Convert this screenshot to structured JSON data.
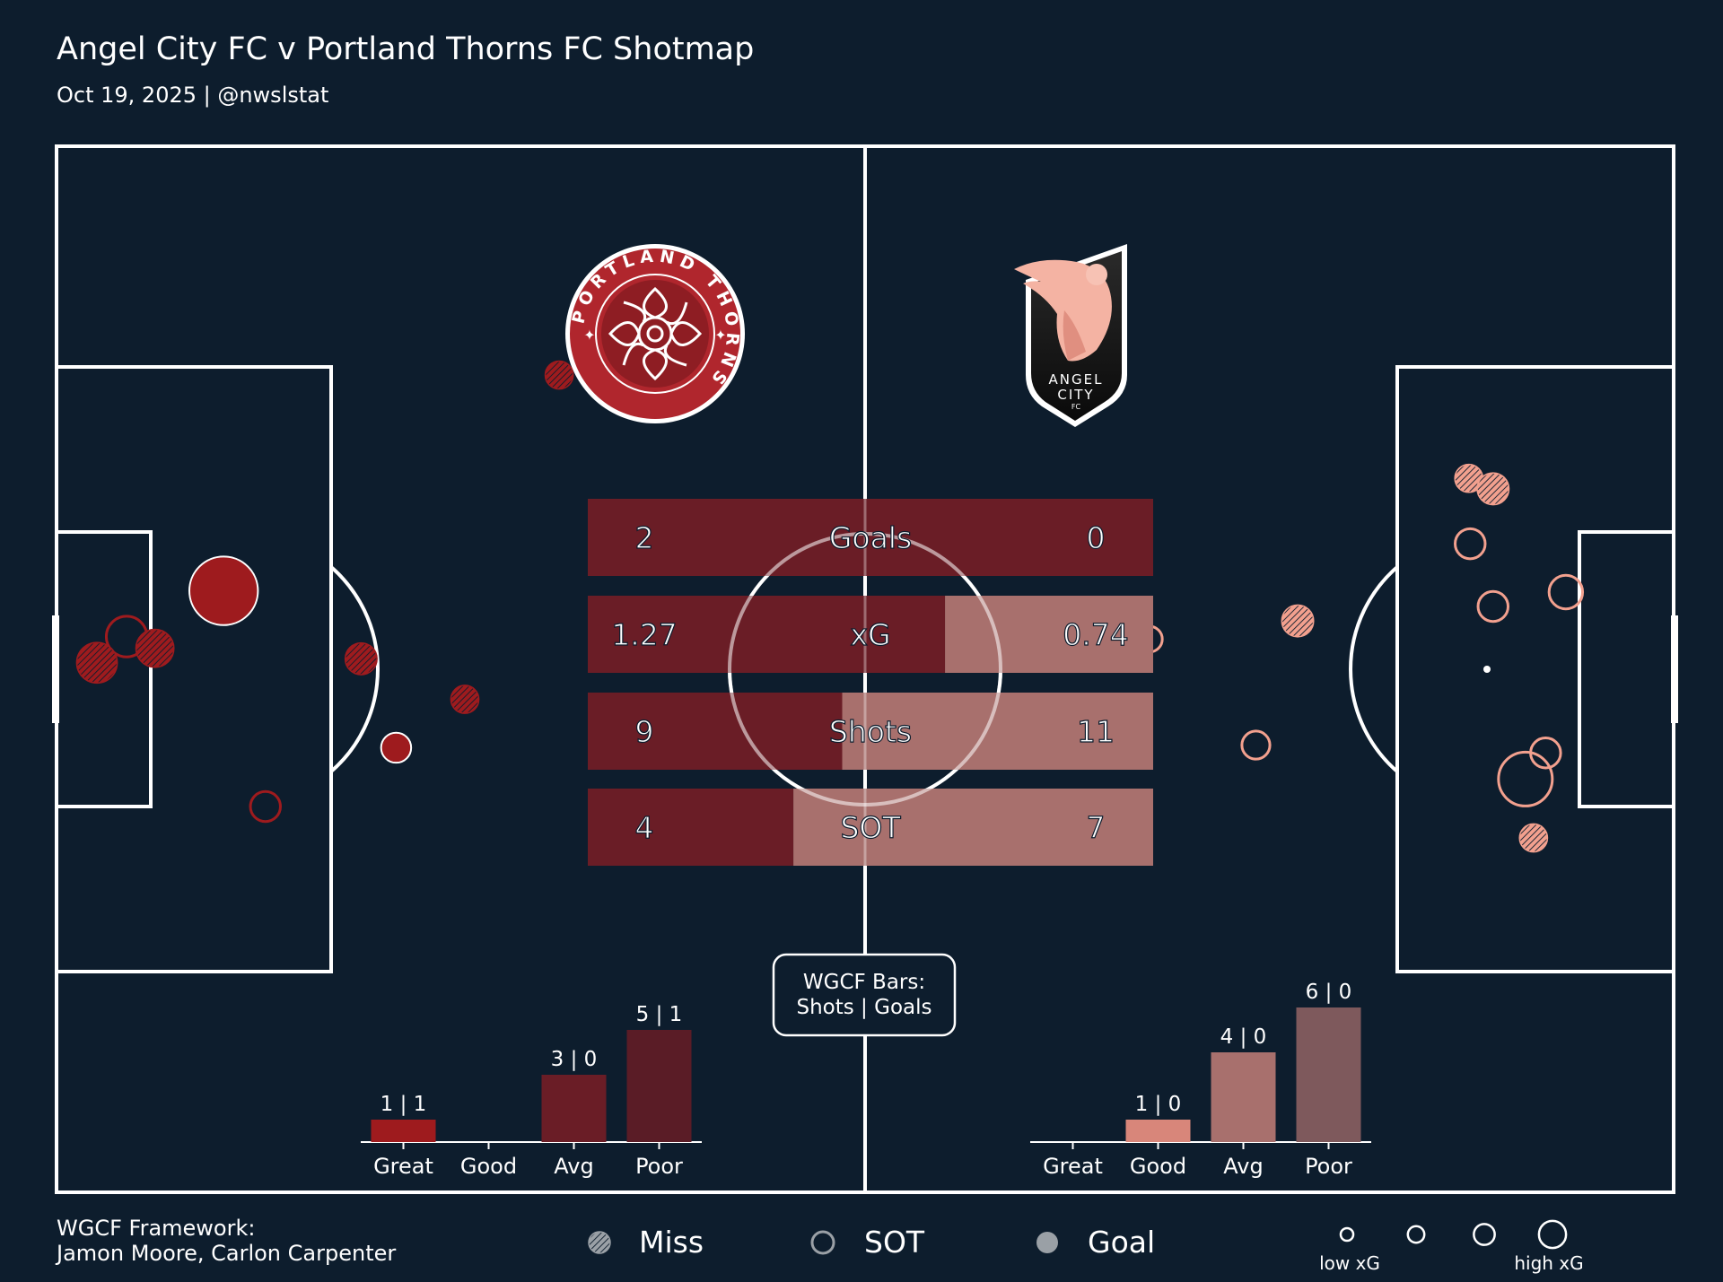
{
  "header": {
    "title": "Angel City FC v Portland Thorns FC Shotmap",
    "subtitle": "Oct 19, 2025 | @nwslstat"
  },
  "colors": {
    "background": "#0d1d2d",
    "lines": "#ffffff",
    "thorns": "#9e1b1e",
    "thorns_bar": "#6a1d26",
    "acfc": "#f2a08e",
    "acfc_bar": "#a8706d",
    "legend_grey": "#9aa0a6"
  },
  "logos": {
    "thorns": {
      "text": "PORTLAND THORNS",
      "icon": "thorns-rose-crest"
    },
    "acfc": {
      "line1": "ANGEL",
      "line2": "CITY",
      "line3": "FC",
      "icon": "angel-city-shield"
    }
  },
  "stats": {
    "teams": [
      "Portland Thorns FC",
      "Angel City FC"
    ],
    "rows": [
      {
        "label": "Goals",
        "left_text": "2",
        "right_text": "0",
        "left": 2,
        "right": 0
      },
      {
        "label": "xG",
        "left_text": "1.27",
        "right_text": "0.74",
        "left": 1.27,
        "right": 0.74
      },
      {
        "label": "Shots",
        "left_text": "9",
        "right_text": "11",
        "left": 9,
        "right": 11
      },
      {
        "label": "SOT",
        "left_text": "4",
        "right_text": "7",
        "left": 4,
        "right": 7
      }
    ]
  },
  "wgcf_note": {
    "line1": "WGCF Bars:",
    "line2": "Shots | Goals"
  },
  "chart_data": [
    {
      "type": "scatter",
      "name": "shotmap",
      "teams": [
        {
          "team": "Portland Thorns FC",
          "attacking_direction": "left",
          "shots": [
            {
              "x": 12.4,
              "y": 34.0,
              "result": "goal",
              "xg": 0.45
            },
            {
              "x": 25.2,
              "y": 46.0,
              "result": "goal",
              "xg": 0.05
            },
            {
              "x": 5.2,
              "y": 37.5,
              "result": "sot",
              "xg": 0.12
            },
            {
              "x": 15.5,
              "y": 50.5,
              "result": "sot",
              "xg": 0.05
            },
            {
              "x": 3.0,
              "y": 39.5,
              "result": "miss",
              "xg": 0.12
            },
            {
              "x": 7.3,
              "y": 38.4,
              "result": "miss",
              "xg": 0.1
            },
            {
              "x": 22.6,
              "y": 39.2,
              "result": "miss",
              "xg": 0.06
            },
            {
              "x": 30.3,
              "y": 42.3,
              "result": "miss",
              "xg": 0.04
            },
            {
              "x": 37.3,
              "y": 17.5,
              "result": "miss",
              "xg": 0.04
            }
          ]
        },
        {
          "team": "Angel City FC",
          "attacking_direction": "right",
          "shots": [
            {
              "x": 109.6,
              "y": 52.9,
              "result": "miss",
              "xg": 0.04
            },
            {
              "x": 110.5,
              "y": 46.4,
              "result": "sot",
              "xg": 0.05
            },
            {
              "x": 109.0,
              "y": 48.4,
              "result": "sot",
              "xg": 0.25
            },
            {
              "x": 89.0,
              "y": 45.8,
              "result": "sot",
              "xg": 0.04
            },
            {
              "x": 81.1,
              "y": 37.7,
              "result": "sot",
              "xg": 0.03
            },
            {
              "x": 92.1,
              "y": 36.3,
              "result": "miss",
              "xg": 0.06
            },
            {
              "x": 106.6,
              "y": 35.2,
              "result": "sot",
              "xg": 0.05
            },
            {
              "x": 112.0,
              "y": 34.1,
              "result": "sot",
              "xg": 0.07
            },
            {
              "x": 104.9,
              "y": 30.4,
              "result": "sot",
              "xg": 0.05
            },
            {
              "x": 104.8,
              "y": 25.4,
              "result": "miss",
              "xg": 0.04
            },
            {
              "x": 106.6,
              "y": 26.2,
              "result": "miss",
              "xg": 0.06
            }
          ]
        }
      ],
      "legend": {
        "items": [
          {
            "label": "Miss",
            "marker": "hatched-circle"
          },
          {
            "label": "SOT",
            "marker": "open-circle"
          },
          {
            "label": "Goal",
            "marker": "filled-circle"
          }
        ],
        "xg_sizes": [
          0.02,
          0.05,
          0.1,
          0.2
        ],
        "low_label": "low xG",
        "high_label": "high xG"
      }
    },
    {
      "type": "bar",
      "team": "Portland Thorns FC",
      "categories": [
        "Great",
        "Good",
        "Avg",
        "Poor"
      ],
      "series": [
        {
          "name": "Shots",
          "values": [
            1,
            0,
            3,
            5
          ]
        },
        {
          "name": "Goals",
          "values": [
            1,
            0,
            0,
            1
          ]
        }
      ],
      "labels": [
        "1 | 1",
        "",
        "3 | 0",
        "5 | 1"
      ],
      "ylim": [
        0,
        6
      ]
    },
    {
      "type": "bar",
      "team": "Angel City FC",
      "categories": [
        "Great",
        "Good",
        "Avg",
        "Poor"
      ],
      "series": [
        {
          "name": "Shots",
          "values": [
            0,
            1,
            4,
            6
          ]
        },
        {
          "name": "Goals",
          "values": [
            0,
            0,
            0,
            0
          ]
        }
      ],
      "labels": [
        "",
        "1 | 0",
        "4 | 0",
        "6 | 0"
      ],
      "ylim": [
        0,
        6
      ]
    }
  ],
  "footer": {
    "credit_line1": "WGCF Framework:",
    "credit_line2": "Jamon Moore, Carlon Carpenter"
  }
}
